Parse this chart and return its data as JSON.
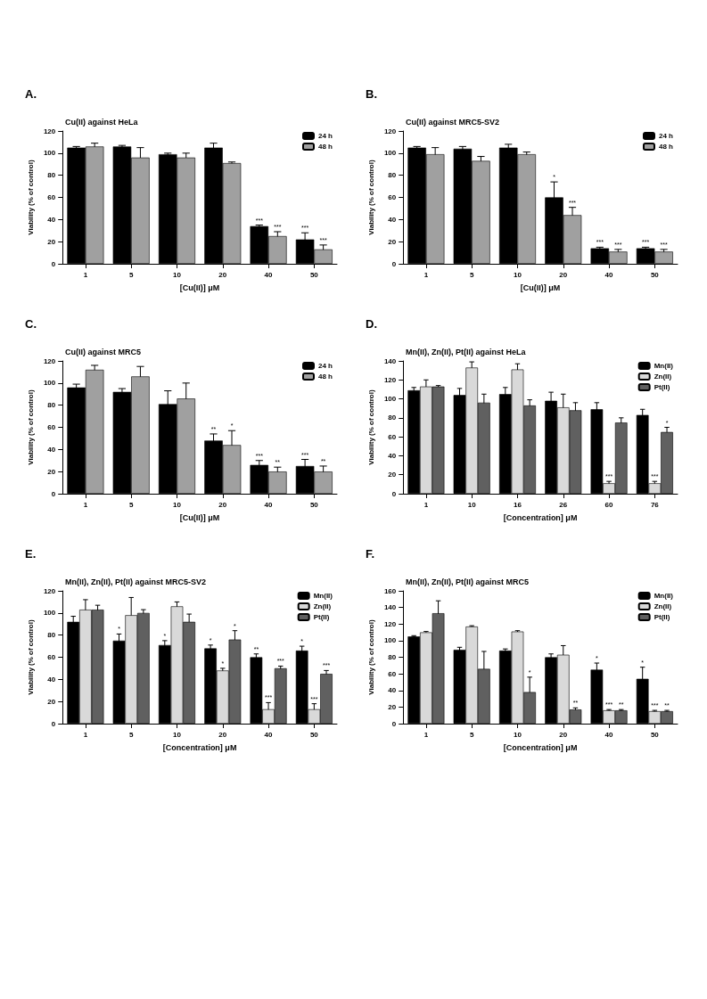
{
  "chart_data": [
    {
      "type": "bar",
      "title": "Cu(II) against HeLa",
      "xlabel": "[Cu(II)] μM",
      "ylabel": "Viability (% of control)",
      "annotations": [
        "A."
      ],
      "categories": [
        "1",
        "5",
        "10",
        "20",
        "40",
        "50"
      ],
      "ylim": [
        0,
        120
      ],
      "yticks": [
        0,
        20,
        40,
        60,
        80,
        100,
        120
      ],
      "legend": "top right",
      "series": [
        {
          "name": "24 h",
          "color": "#000000",
          "values": [
            105,
            106,
            99,
            105,
            34,
            22
          ],
          "errors": [
            1,
            1,
            1,
            4,
            1,
            6
          ],
          "value_labels": [
            null,
            null,
            null,
            null,
            "***",
            "***"
          ]
        },
        {
          "name": "48 h",
          "color": "#a0a0a0",
          "values": [
            106,
            96,
            96,
            91,
            25,
            13
          ],
          "errors": [
            3,
            9,
            4,
            1,
            4,
            4
          ],
          "value_labels": [
            null,
            null,
            null,
            null,
            "***",
            "***"
          ]
        }
      ]
    },
    {
      "type": "bar",
      "title": "Cu(II) against MRC5-SV2",
      "xlabel": "[Cu(II)] μM",
      "ylabel": "Viability (% of control)",
      "annotations": [
        "B."
      ],
      "categories": [
        "1",
        "5",
        "10",
        "20",
        "40",
        "50"
      ],
      "ylim": [
        0,
        120
      ],
      "yticks": [
        0,
        20,
        40,
        60,
        80,
        100,
        120
      ],
      "legend": "top right",
      "series": [
        {
          "name": "24 h",
          "color": "#000000",
          "values": [
            105,
            104,
            105,
            60,
            14,
            14
          ],
          "errors": [
            1,
            2,
            3,
            14,
            1,
            1
          ],
          "value_labels": [
            null,
            null,
            null,
            "*",
            "***",
            "***"
          ]
        },
        {
          "name": "48 h",
          "color": "#a0a0a0",
          "values": [
            99,
            93,
            99,
            44,
            11,
            11
          ],
          "errors": [
            6,
            4,
            2,
            7,
            2,
            2
          ],
          "value_labels": [
            null,
            null,
            null,
            "***",
            "***",
            "***"
          ]
        }
      ]
    },
    {
      "type": "bar",
      "title": "Cu(II) against MRC5",
      "xlabel": "[Cu(II)] μM",
      "ylabel": "Viability (% of control)",
      "annotations": [
        "C."
      ],
      "categories": [
        "1",
        "5",
        "10",
        "20",
        "40",
        "50"
      ],
      "ylim": [
        0,
        120
      ],
      "yticks": [
        0,
        20,
        40,
        60,
        80,
        100,
        120
      ],
      "legend": "top right",
      "series": [
        {
          "name": "24 h",
          "color": "#000000",
          "values": [
            96,
            92,
            81,
            48,
            26,
            25
          ],
          "errors": [
            3,
            3,
            12,
            6,
            4,
            6
          ],
          "value_labels": [
            null,
            null,
            null,
            "**",
            "***",
            "***"
          ]
        },
        {
          "name": "48 h",
          "color": "#a0a0a0",
          "values": [
            112,
            106,
            86,
            44,
            20,
            20
          ],
          "errors": [
            4,
            9,
            14,
            13,
            4,
            5
          ],
          "value_labels": [
            null,
            null,
            null,
            "*",
            "**",
            "**"
          ]
        }
      ]
    },
    {
      "type": "bar",
      "title": "Mn(II), Zn(II), Pt(II) against HeLa",
      "xlabel": "[Concentration] μM",
      "ylabel": "Viability (% of control)",
      "annotations": [
        "D."
      ],
      "categories": [
        "1",
        "10",
        "16",
        "26",
        "60",
        "76"
      ],
      "ylim": [
        0,
        140
      ],
      "yticks": [
        0,
        20,
        40,
        60,
        80,
        100,
        120,
        140
      ],
      "legend": "top right",
      "series": [
        {
          "name": "Mn(II)",
          "color": "#000000",
          "values": [
            109,
            104,
            105,
            98,
            89,
            83
          ],
          "errors": [
            3,
            7,
            7,
            9,
            7,
            6
          ],
          "value_labels": [
            null,
            null,
            null,
            null,
            null,
            null
          ]
        },
        {
          "name": "Zn(II)",
          "color": "#d9d9d9",
          "values": [
            113,
            133,
            131,
            91,
            11,
            11
          ],
          "errors": [
            7,
            6,
            6,
            14,
            2,
            2
          ],
          "value_labels": [
            null,
            null,
            null,
            null,
            "***",
            "***"
          ]
        },
        {
          "name": "Pt(II)",
          "color": "#606060",
          "values": [
            113,
            96,
            93,
            88,
            75,
            65
          ],
          "errors": [
            1,
            9,
            6,
            8,
            5,
            5
          ],
          "value_labels": [
            null,
            null,
            null,
            null,
            null,
            "*"
          ]
        }
      ]
    },
    {
      "type": "bar",
      "title": "Mn(II), Zn(II), Pt(II) against MRC5-SV2",
      "xlabel": "[Concentration] μM",
      "ylabel": "Viability (% of control)",
      "annotations": [
        "E."
      ],
      "categories": [
        "1",
        "5",
        "10",
        "20",
        "40",
        "50"
      ],
      "ylim": [
        0,
        120
      ],
      "yticks": [
        0,
        20,
        40,
        60,
        80,
        100,
        120
      ],
      "legend": "top right",
      "series": [
        {
          "name": "Mn(II)",
          "color": "#000000",
          "values": [
            92,
            75,
            71,
            68,
            60,
            66
          ],
          "errors": [
            5,
            6,
            4,
            3,
            3,
            4
          ],
          "value_labels": [
            null,
            "*",
            "*",
            "*",
            "**",
            "*"
          ]
        },
        {
          "name": "Zn(II)",
          "color": "#d9d9d9",
          "values": [
            103,
            98,
            106,
            48,
            13,
            13
          ],
          "errors": [
            9,
            16,
            4,
            2,
            6,
            5
          ],
          "value_labels": [
            null,
            null,
            null,
            "*",
            "***",
            "***"
          ]
        },
        {
          "name": "Pt(II)",
          "color": "#606060",
          "values": [
            103,
            100,
            92,
            76,
            50,
            45
          ],
          "errors": [
            4,
            3,
            7,
            8,
            2,
            3
          ],
          "value_labels": [
            null,
            null,
            null,
            "*",
            "***",
            "***"
          ]
        }
      ]
    },
    {
      "type": "bar",
      "title": "Mn(II), Zn(II), Pt(II) against MRC5",
      "xlabel": "[Concentration] μM",
      "ylabel": "Viability (% of control)",
      "annotations": [
        "F."
      ],
      "categories": [
        "1",
        "5",
        "10",
        "20",
        "40",
        "50"
      ],
      "ylim": [
        0,
        160
      ],
      "yticks": [
        0,
        20,
        40,
        60,
        80,
        100,
        120,
        140,
        160
      ],
      "legend": "top right",
      "series": [
        {
          "name": "Mn(II)",
          "color": "#000000",
          "values": [
            105,
            89,
            88,
            80,
            65,
            54
          ],
          "errors": [
            1,
            3,
            2,
            4,
            8,
            14
          ],
          "value_labels": [
            null,
            null,
            null,
            null,
            "*",
            "*"
          ]
        },
        {
          "name": "Zn(II)",
          "color": "#d9d9d9",
          "values": [
            110,
            117,
            111,
            83,
            16,
            15
          ],
          "errors": [
            1,
            1,
            1,
            11,
            1,
            1
          ],
          "value_labels": [
            null,
            null,
            null,
            null,
            "***",
            "***"
          ]
        },
        {
          "name": "Pt(II)",
          "color": "#606060",
          "values": [
            133,
            66,
            38,
            17,
            16,
            15
          ],
          "errors": [
            15,
            21,
            18,
            2,
            1,
            1
          ],
          "value_labels": [
            null,
            null,
            "*",
            "**",
            "**",
            "**"
          ]
        }
      ]
    }
  ]
}
